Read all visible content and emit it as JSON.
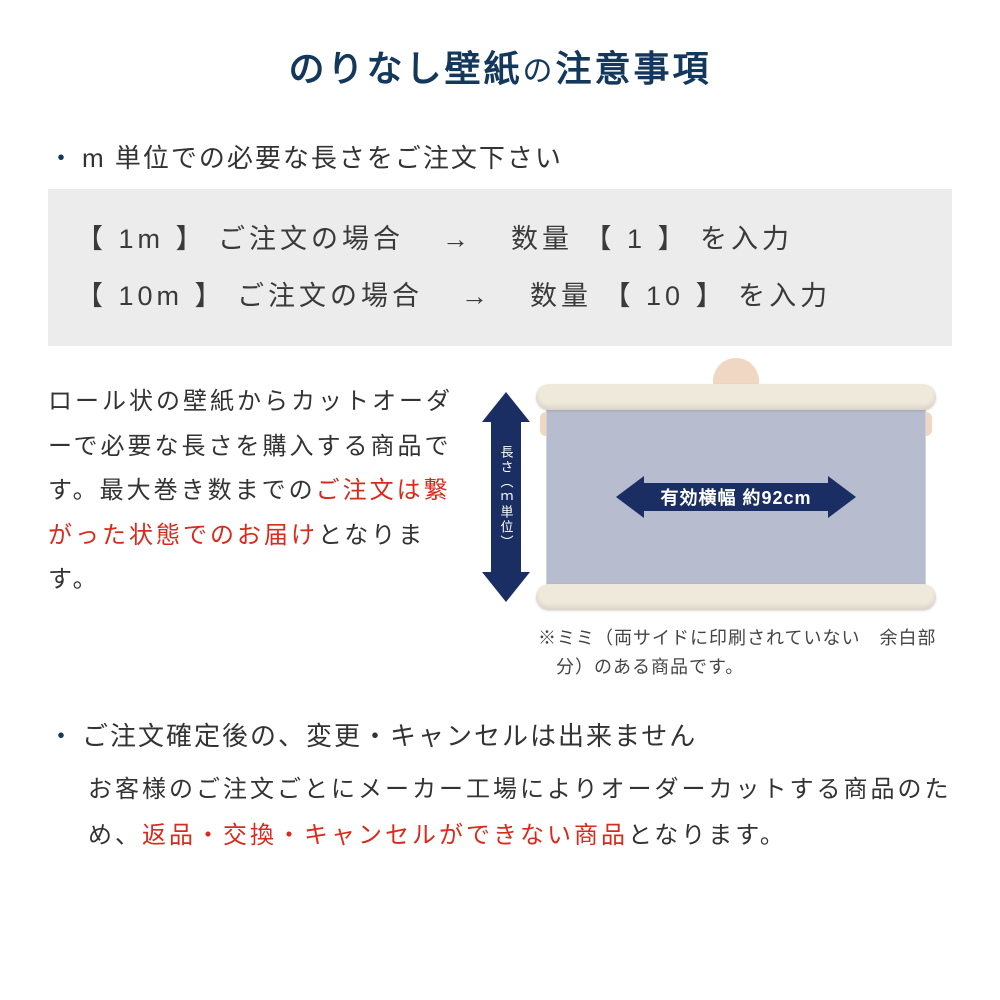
{
  "colors": {
    "title": "#14385c",
    "body_text": "#333333",
    "example_bg": "#ececec",
    "arrow_navy": "#1a2e63",
    "panel_fill": "#b7bdcf",
    "roll_cream": "#efe9dc",
    "accent_red": "#d92a1c",
    "skin": "#f0d7c3",
    "clothing": "#525869",
    "background": "#ffffff"
  },
  "typography": {
    "title_fontsize_pt": 27,
    "bullet_fontsize_pt": 20,
    "body_fontsize_pt": 18,
    "example_fontsize_pt": 20,
    "vlabel_fontsize_pt": 10,
    "hlabel_fontsize_pt": 14,
    "note_fontsize_pt": 14
  },
  "title": {
    "main": "のりなし壁紙",
    "particle": "の",
    "tail": "注意事項"
  },
  "section1": {
    "bullet": "m 単位での必要な長さをご注文下さい",
    "examples": [
      {
        "left": "【  1m  】 ご注文の場合",
        "arrow": "→",
        "right": "数量 【  1  】 を入力"
      },
      {
        "left": "【 10m 】 ご注文の場合",
        "arrow": "→",
        "right": "数量 【  10  】 を入力"
      }
    ],
    "mid_text_pre": "ロール状の壁紙からカットオーダーで必要な長さを購入する商品です。最大巻き数までの",
    "mid_text_red": "ご注文は繋がった状態でのお届け",
    "mid_text_post": "となります。",
    "vertical_label": "長さ（ｍ単位）",
    "horizontal_label": "有効横幅 約92cm",
    "mimi_note": "※ミミ（両サイドに印刷されていない　余白部分）のある商品です。"
  },
  "section2": {
    "bullet": "ご注文確定後の、変更・キャンセルは出来ません",
    "body_pre": "お客様のご注文ごとにメーカー工場によりオーダーカットする商品のため、",
    "body_red": "返品・交換・キャンセルができない商品",
    "body_post": "となります。"
  }
}
